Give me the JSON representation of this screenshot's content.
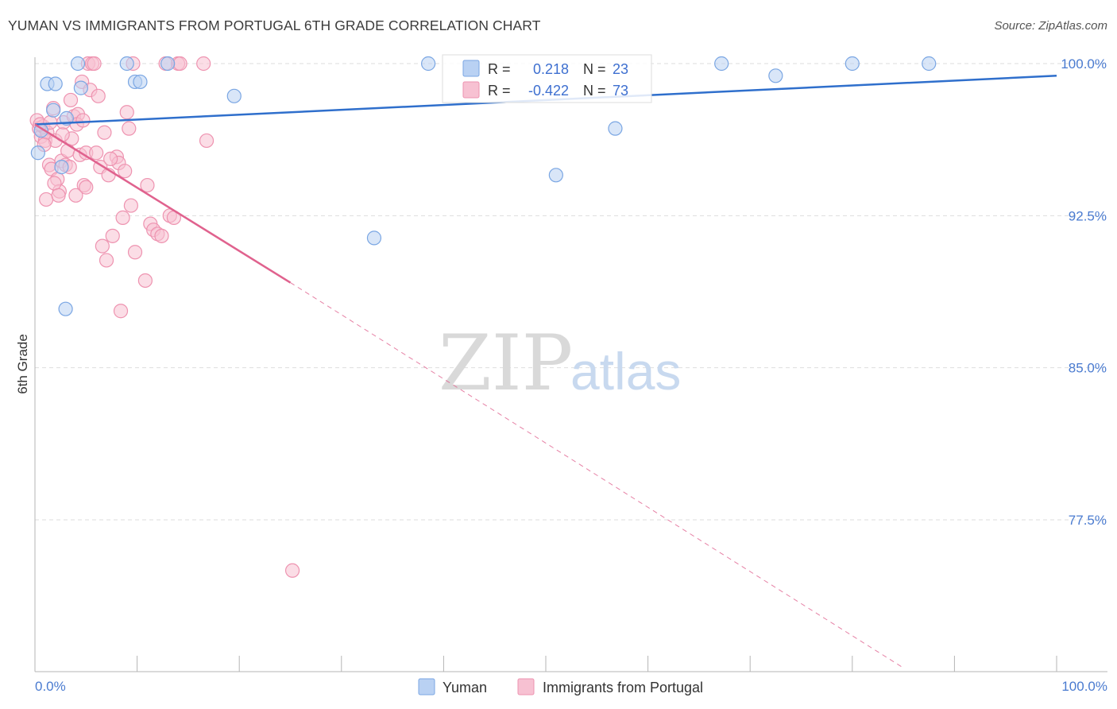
{
  "title": "YUMAN VS IMMIGRANTS FROM PORTUGAL 6TH GRADE CORRELATION CHART",
  "source": "Source: ZipAtlas.com",
  "watermark": {
    "zip": "ZIP",
    "atlas": "atlas"
  },
  "colors": {
    "yuman_fill": "#b9d1f3",
    "yuman_stroke": "#7aa6e3",
    "yuman_line": "#2f6fcc",
    "portugal_fill": "#f7c1d2",
    "portugal_stroke": "#ee93b0",
    "portugal_line": "#e0628e",
    "grid": "#dddddd",
    "tick_text": "#4a7bd0"
  },
  "stats": {
    "yuman": {
      "r_label": "R =",
      "r": "0.218",
      "n_label": "N =",
      "n": "23"
    },
    "portugal": {
      "r_label": "R =",
      "r": "-0.422",
      "n_label": "N =",
      "n": "73"
    }
  },
  "chart_data": {
    "type": "scatter",
    "title": "YUMAN VS IMMIGRANTS FROM PORTUGAL 6TH GRADE CORRELATION CHART",
    "xlabel": "",
    "ylabel": "6th Grade",
    "xlim": [
      0,
      100
    ],
    "ylim": [
      69.5,
      101.7
    ],
    "x_tick_labels": [
      "0.0%",
      "100.0%"
    ],
    "y_ticks": [
      100,
      92.5,
      85,
      77.5
    ],
    "y_tick_labels": [
      "100.0%",
      "92.5%",
      "85.0%",
      "77.5%"
    ],
    "legend": [
      "Yuman",
      "Immigrants from Portugal"
    ],
    "series": [
      {
        "name": "Yuman",
        "r": 0.218,
        "n": 23,
        "trend": {
          "x": [
            0,
            100
          ],
          "y": [
            97.0,
            99.4
          ]
        },
        "points": [
          [
            0.3,
            95.6
          ],
          [
            0.6,
            96.7
          ],
          [
            1.2,
            99.0
          ],
          [
            2.0,
            99.0
          ],
          [
            1.8,
            97.7
          ],
          [
            4.2,
            100.0
          ],
          [
            4.5,
            98.8
          ],
          [
            3.1,
            97.3
          ],
          [
            2.6,
            94.9
          ],
          [
            3.0,
            87.9
          ],
          [
            9.0,
            100.0
          ],
          [
            9.8,
            99.1
          ],
          [
            10.3,
            99.1
          ],
          [
            13.0,
            100.0
          ],
          [
            19.5,
            98.4
          ],
          [
            33.2,
            91.4
          ],
          [
            38.5,
            100.0
          ],
          [
            51.0,
            94.5
          ],
          [
            56.8,
            96.8
          ],
          [
            67.2,
            100.0
          ],
          [
            72.5,
            99.4
          ],
          [
            80.0,
            100.0
          ],
          [
            87.5,
            100.0
          ]
        ]
      },
      {
        "name": "Immigrants from Portugal",
        "r": -0.422,
        "n": 73,
        "trend": {
          "x": [
            0,
            25
          ],
          "y": [
            97.0,
            89.2
          ],
          "dashed_extension": {
            "x": [
              25,
              85
            ],
            "y": [
              89.2,
              70.2
            ]
          }
        },
        "points": [
          [
            0.2,
            97.2
          ],
          [
            0.4,
            96.8
          ],
          [
            0.6,
            96.4
          ],
          [
            0.8,
            96.9
          ],
          [
            1.0,
            96.2
          ],
          [
            1.2,
            96.6
          ],
          [
            1.4,
            95.0
          ],
          [
            1.6,
            94.8
          ],
          [
            1.8,
            97.8
          ],
          [
            2.0,
            96.2
          ],
          [
            2.2,
            94.3
          ],
          [
            2.4,
            93.7
          ],
          [
            2.6,
            95.2
          ],
          [
            2.8,
            97.1
          ],
          [
            3.0,
            95.0
          ],
          [
            3.2,
            95.7
          ],
          [
            3.4,
            94.9
          ],
          [
            3.6,
            96.3
          ],
          [
            3.8,
            97.4
          ],
          [
            4.0,
            93.5
          ],
          [
            4.2,
            97.5
          ],
          [
            4.4,
            95.5
          ],
          [
            4.6,
            99.1
          ],
          [
            4.8,
            94.0
          ],
          [
            5.0,
            95.6
          ],
          [
            5.2,
            100.0
          ],
          [
            5.4,
            98.7
          ],
          [
            5.6,
            100.0
          ],
          [
            5.8,
            100.0
          ],
          [
            6.2,
            98.4
          ],
          [
            6.4,
            94.9
          ],
          [
            6.6,
            91.0
          ],
          [
            6.8,
            96.6
          ],
          [
            7.0,
            90.3
          ],
          [
            7.2,
            94.5
          ],
          [
            7.6,
            91.5
          ],
          [
            8.0,
            95.4
          ],
          [
            8.2,
            95.1
          ],
          [
            8.4,
            87.8
          ],
          [
            8.6,
            92.4
          ],
          [
            8.8,
            94.7
          ],
          [
            9.0,
            97.6
          ],
          [
            9.2,
            96.8
          ],
          [
            9.4,
            93.0
          ],
          [
            9.6,
            100.0
          ],
          [
            9.8,
            90.7
          ],
          [
            10.8,
            89.3
          ],
          [
            11.0,
            94.0
          ],
          [
            11.3,
            92.1
          ],
          [
            11.6,
            91.8
          ],
          [
            12.0,
            91.6
          ],
          [
            12.4,
            91.5
          ],
          [
            12.8,
            100.0
          ],
          [
            13.2,
            92.5
          ],
          [
            13.6,
            92.4
          ],
          [
            14.0,
            100.0
          ],
          [
            14.2,
            100.0
          ],
          [
            16.5,
            100.0
          ],
          [
            16.8,
            96.2
          ],
          [
            25.2,
            75.0
          ],
          [
            0.5,
            97.0
          ],
          [
            1.1,
            93.3
          ],
          [
            1.9,
            94.1
          ],
          [
            2.7,
            96.5
          ],
          [
            3.5,
            98.2
          ],
          [
            4.1,
            97.0
          ],
          [
            5.0,
            93.9
          ],
          [
            6.0,
            95.6
          ],
          [
            7.4,
            95.3
          ],
          [
            0.9,
            96.0
          ],
          [
            2.3,
            93.5
          ],
          [
            4.7,
            97.2
          ],
          [
            1.5,
            97.1
          ]
        ]
      }
    ]
  }
}
